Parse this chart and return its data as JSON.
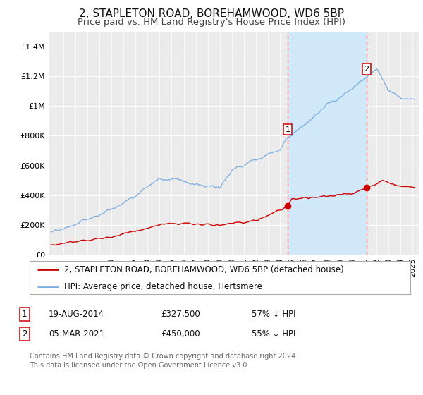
{
  "title": "2, STAPLETON ROAD, BOREHAMWOOD, WD6 5BP",
  "subtitle": "Price paid vs. HM Land Registry's House Price Index (HPI)",
  "ylim": [
    0,
    1500000
  ],
  "yticks": [
    0,
    200000,
    400000,
    600000,
    800000,
    1000000,
    1200000,
    1400000
  ],
  "ytick_labels": [
    "£0",
    "£200K",
    "£400K",
    "£600K",
    "£800K",
    "£1M",
    "£1.2M",
    "£1.4M"
  ],
  "xlim_start": 1994.8,
  "xlim_end": 2025.5,
  "background_color": "#ffffff",
  "plot_bg_color": "#ebebeb",
  "grid_color": "#ffffff",
  "sale1_date_num": 2014.635,
  "sale1_price": 327500,
  "sale1_label": "1",
  "sale2_date_num": 2021.17,
  "sale2_price": 450000,
  "sale2_label": "2",
  "red_line_color": "#cc0000",
  "blue_line_color": "#7aade0",
  "sale_dot_color": "#cc0000",
  "vline_color": "#ee4444",
  "shade_color": "#d0e8f8",
  "legend_label_red": "2, STAPLETON ROAD, BOREHAMWOOD, WD6 5BP (detached house)",
  "legend_label_blue": "HPI: Average price, detached house, Hertsmere",
  "annotation1_date": "19-AUG-2014",
  "annotation1_price": "£327,500",
  "annotation1_pct": "57% ↓ HPI",
  "annotation2_date": "05-MAR-2021",
  "annotation2_price": "£450,000",
  "annotation2_pct": "55% ↓ HPI",
  "footnote": "Contains HM Land Registry data © Crown copyright and database right 2024.\nThis data is licensed under the Open Government Licence v3.0.",
  "title_fontsize": 11,
  "subtitle_fontsize": 9.5,
  "tick_fontsize": 8,
  "legend_fontsize": 8.5,
  "annot_fontsize": 8.5
}
